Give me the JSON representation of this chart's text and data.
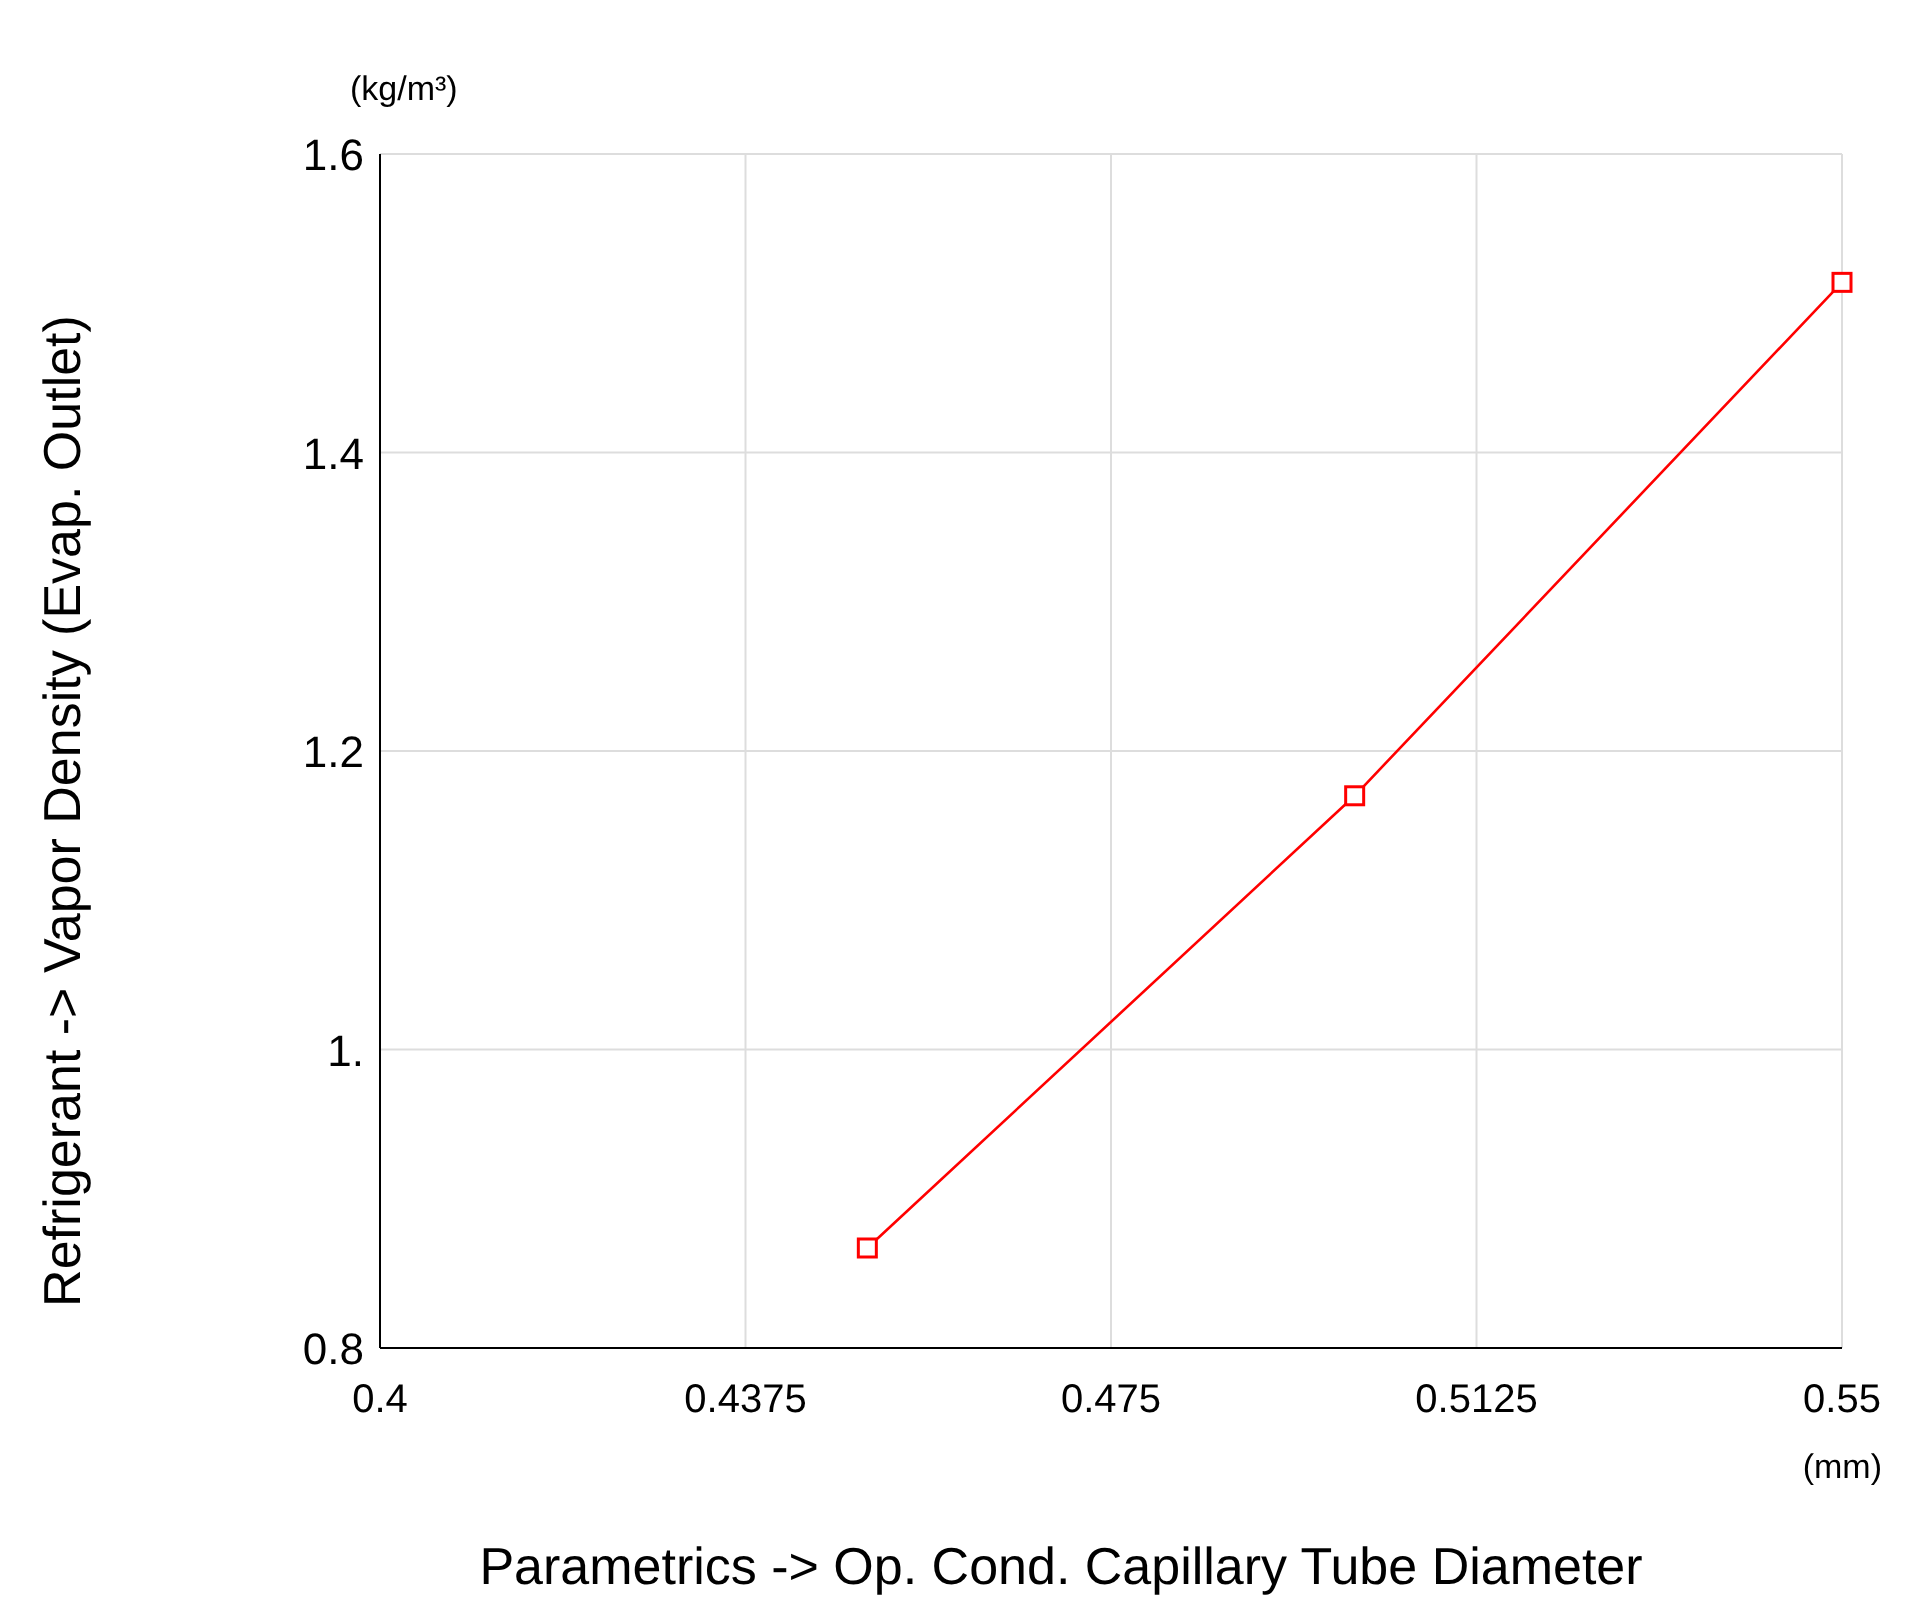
{
  "chart_data": {
    "type": "line",
    "xlabel": "Parametrics  ->  Op. Cond. Capillary Tube Diameter",
    "ylabel": "Refrigerant  ->  Vapor Density  (Evap. Outlet)",
    "annotations": [
      "(kg/m³)",
      "(mm)"
    ],
    "x": [
      0.45,
      0.5,
      0.55
    ],
    "series": [
      {
        "color": "#ff0000",
        "values": [
          0.867,
          1.17,
          1.514
        ]
      }
    ],
    "xlim": [
      0.4,
      0.55
    ],
    "xticks": [
      0.4,
      0.4375,
      0.475,
      0.5125,
      0.55
    ],
    "ylim": [
      0.8,
      1.6
    ],
    "yticks": [
      0.8,
      {
        "value": 1,
        "label": "1."
      },
      1.2,
      1.4,
      1.6
    ],
    "grid": true,
    "marker": "square",
    "line_style": "solid"
  }
}
